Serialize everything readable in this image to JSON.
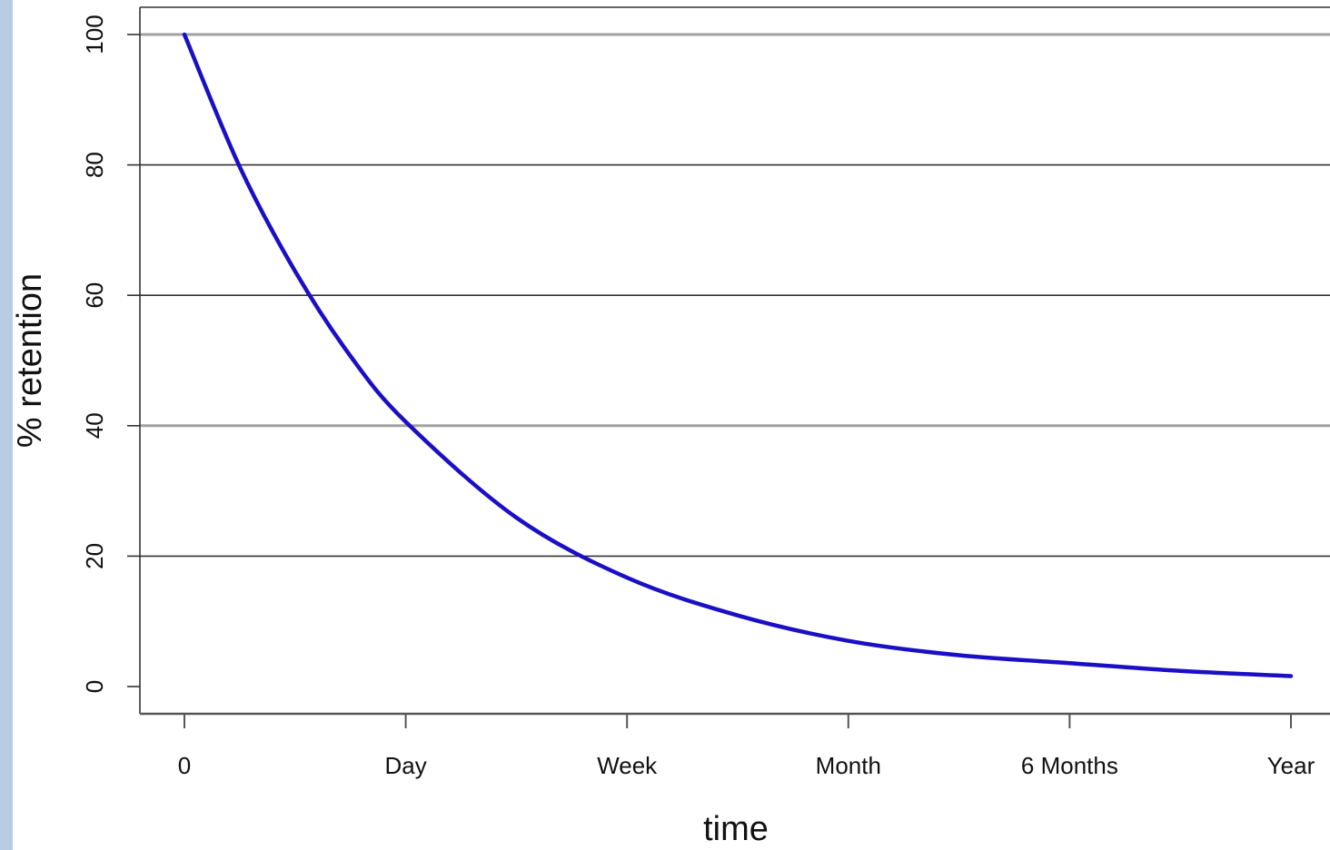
{
  "colors": {
    "left_strip": "#b8cce4",
    "curve": "#1a0fc4",
    "grid_dark": "#333333",
    "grid_light": "#a0a0a0",
    "axis": "#555555"
  },
  "chart_data": {
    "type": "line",
    "xlabel": "time",
    "ylabel": "% retention",
    "x_ticks": [
      "0",
      "Day",
      "Week",
      "Month",
      "6 Months",
      "Year"
    ],
    "y_ticks": [
      0,
      20,
      40,
      60,
      80,
      100
    ],
    "ylim": [
      0,
      100
    ],
    "grid": "horizontal",
    "series": [
      {
        "x": [
          0,
          0.25,
          0.5,
          0.75,
          1,
          1.5,
          2,
          2.5,
          3,
          3.5,
          4,
          4.5,
          5
        ],
        "y": [
          100,
          79.7,
          63.7,
          50.7,
          40.6,
          25.9,
          16.7,
          10.9,
          7.0,
          4.8,
          3.6,
          2.4,
          1.6
        ]
      }
    ]
  }
}
